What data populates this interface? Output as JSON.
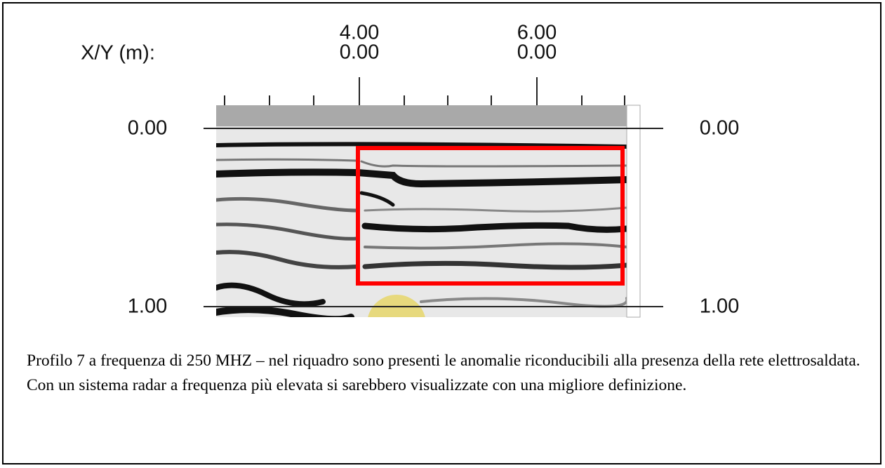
{
  "figure": {
    "axis_label": "X/Y (m):",
    "top_ticks": [
      {
        "x": "4.00",
        "y": "0.00"
      },
      {
        "x": "6.00",
        "y": "0.00"
      }
    ],
    "depth_left": [
      "0.00",
      "1.00"
    ],
    "depth_right": [
      "0.00",
      "1.00"
    ]
  },
  "caption": "Profilo 7 a frequenza di 250 MHZ – nel riquadro sono presenti le anomalie riconducibili alla presenza della rete elettrosaldata. Con un sistema radar a frequenza più elevata si sarebbero visualizzate con una migliore definizione."
}
